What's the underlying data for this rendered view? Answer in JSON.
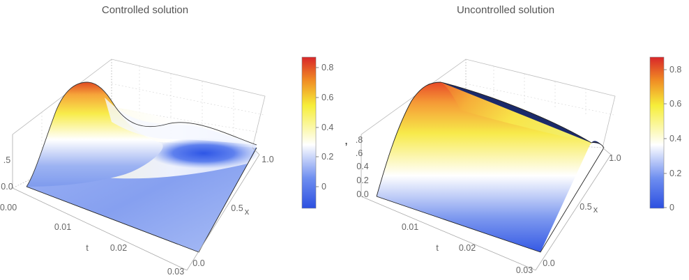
{
  "chart_data": [
    {
      "type": "surface3d",
      "title": "Controlled solution",
      "xlabel": "x",
      "tlabel": "t",
      "x_ticks": [
        "0.0",
        "0.5",
        "1.0"
      ],
      "t_ticks": [
        "0.00",
        "0.01",
        "0.02",
        "0.03"
      ],
      "z_ticks": [
        "0.0",
        ".5"
      ],
      "xlim": [
        0,
        1
      ],
      "tlim": [
        0,
        0.03
      ],
      "colorbar": {
        "ticks": [
          "0",
          "0.2",
          "0.4",
          "0.6",
          "0.8"
        ],
        "range": [
          -0.17,
          0.87
        ]
      },
      "surface_samples": [
        {
          "t": 0.0,
          "x": 0.5,
          "u": 0.87
        },
        {
          "t": 0.0,
          "x": 1.0,
          "u": 0.0
        },
        {
          "t": 0.015,
          "x": 0.5,
          "u": 0.35
        },
        {
          "t": 0.03,
          "x": 0.25,
          "u": 0.0
        },
        {
          "t": 0.03,
          "x": 0.75,
          "u": -0.17
        }
      ]
    },
    {
      "type": "surface3d",
      "title": "Uncontrolled solution",
      "xlabel": "x",
      "tlabel": "t",
      "x_ticks": [
        "0.0",
        "0.5",
        "1.0"
      ],
      "t_ticks": [
        "0.01",
        "0.02",
        "0.03"
      ],
      "z_ticks": [
        "0.0",
        "0.2",
        "0.4",
        ".6",
        ".8"
      ],
      "xlim": [
        0,
        1
      ],
      "tlim": [
        0,
        0.03
      ],
      "colorbar": {
        "ticks": [
          "0",
          "0.2",
          "0.4",
          "0.6",
          "0.8"
        ],
        "range": [
          0,
          0.87
        ]
      },
      "surface_samples": [
        {
          "t": 0.0,
          "x": 0.5,
          "u": 0.87
        },
        {
          "t": 0.03,
          "x": 0.5,
          "u": 0.6
        },
        {
          "t": 0.0,
          "x": 0.0,
          "u": 0.0
        },
        {
          "t": 0.0,
          "x": 1.0,
          "u": 0.0
        }
      ]
    }
  ],
  "separator": ","
}
